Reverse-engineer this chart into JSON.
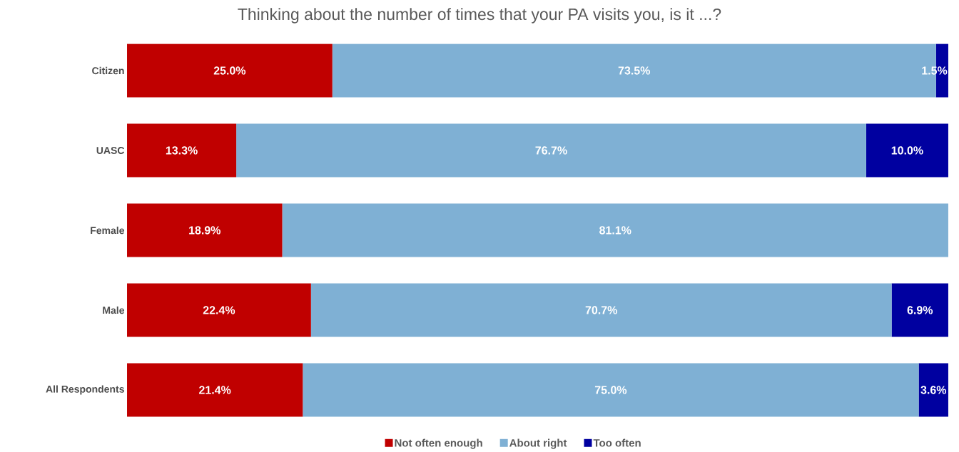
{
  "chart_data": {
    "type": "bar",
    "orientation": "horizontal",
    "stacked": true,
    "title": "Thinking about the number of times that your PA visits you, is it ...?",
    "categories": [
      "Citizen",
      "UASC",
      "Female",
      "Male",
      "All Respondents"
    ],
    "series": [
      {
        "name": "Not often enough",
        "color": "#c00000",
        "values": [
          25.0,
          13.3,
          18.9,
          22.4,
          21.4
        ],
        "value_labels": [
          "25.0%",
          "13.3%",
          "18.9%",
          "22.4%",
          "21.4%"
        ]
      },
      {
        "name": "About right",
        "color": "#7fb0d4",
        "values": [
          73.5,
          76.7,
          81.1,
          70.7,
          75.0
        ],
        "value_labels": [
          "73.5%",
          "76.7%",
          "81.1%",
          "70.7%",
          "75.0%"
        ]
      },
      {
        "name": "Too often",
        "color": "#0000a0",
        "values": [
          1.5,
          10.0,
          null,
          6.9,
          3.6
        ],
        "value_labels": [
          "1.5%",
          "10.0%",
          null,
          "6.9%",
          "3.6%"
        ]
      }
    ],
    "xlim": [
      0,
      100
    ],
    "legend": "bottom"
  }
}
